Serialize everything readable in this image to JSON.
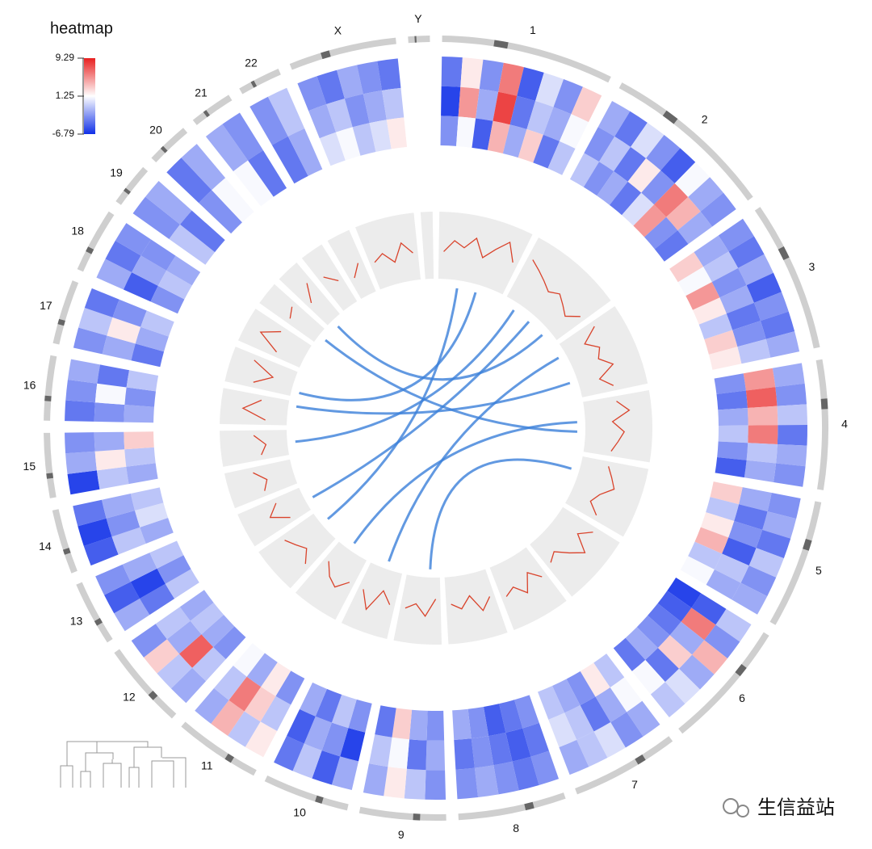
{
  "chart_data": {
    "type": "circos",
    "legend": {
      "title": "heatmap",
      "ticks": [
        9.29,
        1.25,
        -6.79
      ],
      "colorlim": [
        -6.79,
        9.29
      ],
      "colors": [
        "#1030e8",
        "#ffffff",
        "#e82020"
      ]
    },
    "line_ylim": [
      0,
      10
    ],
    "line_color": "#d9432b",
    "link_color": "#3b7fd9",
    "sectors": [
      {
        "name": "1",
        "heatmap": [
          [
            -4,
            2,
            -3,
            6,
            -5,
            0,
            -3,
            3
          ],
          [
            -6,
            5,
            -2,
            8,
            -4,
            -1,
            -2,
            1
          ],
          [
            -3,
            1,
            -5,
            4,
            -2,
            3,
            -4,
            -1
          ]
        ],
        "line": [
          4,
          6,
          5,
          7,
          4,
          6,
          8,
          5
        ]
      },
      {
        "name": "2",
        "heatmap": [
          [
            -2,
            -4,
            0,
            -3,
            -5,
            1,
            -2,
            -3
          ],
          [
            -3,
            -1,
            -4,
            2,
            -3,
            6,
            4,
            -2
          ],
          [
            -1,
            -3,
            -2,
            -4,
            0,
            5,
            -3,
            -4
          ]
        ],
        "line": [
          7,
          6,
          5,
          4,
          5,
          4,
          3,
          5
        ]
      },
      {
        "name": "3",
        "heatmap": [
          [
            -3,
            -4,
            -2,
            -5,
            -3,
            -4,
            -2
          ],
          [
            -2,
            -1,
            -3,
            -2,
            -4,
            -3,
            -1
          ],
          [
            3,
            1,
            5,
            2,
            -1,
            3,
            2
          ]
        ],
        "line": [
          6,
          3,
          5,
          4,
          6,
          3,
          5
        ]
      },
      {
        "name": "4",
        "heatmap": [
          [
            -2,
            -3,
            -1,
            -4,
            -2,
            -3
          ],
          [
            5,
            7,
            4,
            6,
            -1,
            -2
          ],
          [
            -3,
            -4,
            -2,
            -1,
            -3,
            -5
          ]
        ],
        "line": [
          5,
          7,
          4,
          6,
          5,
          4
        ]
      },
      {
        "name": "5",
        "heatmap": [
          [
            -3,
            -2,
            -4,
            -1,
            -3,
            -2
          ],
          [
            -2,
            -4,
            -3,
            -5,
            -1,
            -2
          ],
          [
            3,
            -1,
            2,
            4,
            -1,
            1
          ]
        ],
        "line": [
          4,
          5,
          6,
          4,
          3,
          5
        ]
      },
      {
        "name": "6",
        "heatmap": [
          [
            -1,
            -3,
            4,
            -2,
            0,
            -1
          ],
          [
            -5,
            6,
            -2,
            3,
            -4,
            1
          ],
          [
            -6,
            -5,
            -4,
            -3,
            -2,
            -4
          ]
        ],
        "line": [
          6,
          4,
          7,
          5,
          3,
          4
        ]
      },
      {
        "name": "7",
        "heatmap": [
          [
            -2,
            -3,
            0,
            -1,
            -2
          ],
          [
            1,
            -2,
            -4,
            -1,
            0
          ],
          [
            -1,
            2,
            -3,
            -2,
            -1
          ]
        ],
        "line": [
          5,
          3,
          6,
          4,
          5
        ]
      },
      {
        "name": "8",
        "heatmap": [
          [
            -3,
            -4,
            -3,
            -2,
            -3
          ],
          [
            -4,
            -5,
            -4,
            -3,
            -4
          ],
          [
            -3,
            -4,
            -5,
            -3,
            -2
          ]
        ],
        "line": [
          4,
          6,
          3,
          5,
          4
        ]
      },
      {
        "name": "9",
        "heatmap": [
          [
            -3,
            -1,
            2,
            -2
          ],
          [
            -2,
            -4,
            1,
            -1
          ],
          [
            -3,
            -2,
            3,
            -4
          ]
        ],
        "line": [
          3,
          6,
          4,
          5
        ]
      },
      {
        "name": "10",
        "heatmap": [
          [
            -2,
            -5,
            -1,
            -4
          ],
          [
            -6,
            -3,
            -2,
            -5
          ],
          [
            -3,
            -1,
            -4,
            -2
          ]
        ],
        "line": [
          5,
          3,
          7,
          4
        ]
      },
      {
        "name": "11",
        "heatmap": [
          [
            2,
            -1,
            4,
            -2
          ],
          [
            -1,
            3,
            6,
            -1
          ],
          [
            -3,
            2,
            -2,
            1
          ]
        ],
        "line": [
          4,
          6,
          5,
          3
        ]
      },
      {
        "name": "12",
        "heatmap": [
          [
            -2,
            -1,
            3,
            -3
          ],
          [
            -1,
            7,
            -2,
            -1
          ],
          [
            -3,
            -2,
            -1,
            -2
          ]
        ],
        "line": [
          6,
          4,
          5,
          6
        ]
      },
      {
        "name": "13",
        "heatmap": [
          [
            -2,
            -5,
            -3
          ],
          [
            -4,
            -6,
            -2
          ],
          [
            -1,
            -3,
            -1
          ]
        ],
        "line": [
          3,
          6,
          4
        ]
      },
      {
        "name": "14",
        "heatmap": [
          [
            -5,
            -6,
            -4
          ],
          [
            -1,
            -3,
            -2
          ],
          [
            -2,
            0,
            -1
          ]
        ],
        "line": [
          5,
          4,
          6
        ]
      },
      {
        "name": "15",
        "heatmap": [
          [
            -6,
            -2,
            -3
          ],
          [
            -1,
            2,
            -2
          ],
          [
            -2,
            -1,
            3
          ]
        ],
        "line": [
          4,
          3,
          5
        ]
      },
      {
        "name": "16",
        "heatmap": [
          [
            -4,
            -3,
            -2
          ],
          [
            -3,
            1,
            -4
          ],
          [
            -2,
            -3,
            -1
          ]
        ],
        "line": [
          3,
          7,
          4
        ]
      },
      {
        "name": "17",
        "heatmap": [
          [
            -3,
            -1,
            -4
          ],
          [
            -2,
            2,
            -3
          ],
          [
            -4,
            -2,
            -1
          ]
        ],
        "line": [
          6,
          3,
          7
        ]
      },
      {
        "name": "18",
        "heatmap": [
          [
            -2,
            -4,
            -3
          ],
          [
            -5,
            -2,
            -3
          ],
          [
            -3,
            -1,
            -2
          ]
        ],
        "line": [
          4,
          8,
          5
        ]
      },
      {
        "name": "19",
        "heatmap": [
          [
            -3,
            -2
          ],
          [
            -1,
            -4
          ]
        ],
        "line": [
          5,
          6
        ]
      },
      {
        "name": "20",
        "heatmap": [
          [
            -4,
            -2
          ],
          [
            -3,
            1
          ]
        ],
        "line": [
          4,
          7
        ]
      },
      {
        "name": "21",
        "heatmap": [
          [
            -2,
            -3
          ],
          [
            1,
            -4
          ]
        ],
        "line": [
          6,
          4
        ]
      },
      {
        "name": "22",
        "heatmap": [
          [
            -3,
            -1
          ],
          [
            -4,
            -2
          ]
        ],
        "line": [
          3,
          5
        ]
      },
      {
        "name": "X",
        "heatmap": [
          [
            -3,
            -4,
            -2,
            -3,
            -4
          ],
          [
            -2,
            -1,
            -3,
            -2,
            -1
          ],
          [
            0,
            1,
            -1,
            0,
            2
          ]
        ],
        "line": [
          4,
          5,
          3,
          6,
          4
        ]
      },
      {
        "name": "Y",
        "heatmap": [],
        "line": []
      }
    ],
    "links": [
      {
        "from": [
          0,
          0.3
        ],
        "to": [
          11,
          0.6
        ]
      },
      {
        "from": [
          1,
          0.5
        ],
        "to": [
          12,
          0.4
        ]
      },
      {
        "from": [
          2,
          0.2
        ],
        "to": [
          9,
          0.5
        ]
      },
      {
        "from": [
          3,
          0.4
        ],
        "to": [
          10,
          0.6
        ]
      },
      {
        "from": [
          0,
          0.6
        ],
        "to": [
          16,
          0.2
        ]
      },
      {
        "from": [
          2,
          0.7
        ],
        "to": [
          15,
          0.8
        ]
      },
      {
        "from": [
          4,
          0.3
        ],
        "to": [
          8,
          0.3
        ]
      },
      {
        "from": [
          1,
          0.2
        ],
        "to": [
          14,
          0.5
        ]
      },
      {
        "from": [
          18,
          0.5
        ],
        "to": [
          3,
          0.6
        ]
      },
      {
        "from": [
          19,
          0.4
        ],
        "to": [
          1,
          0.8
        ]
      }
    ]
  },
  "watermark": "生信益站"
}
